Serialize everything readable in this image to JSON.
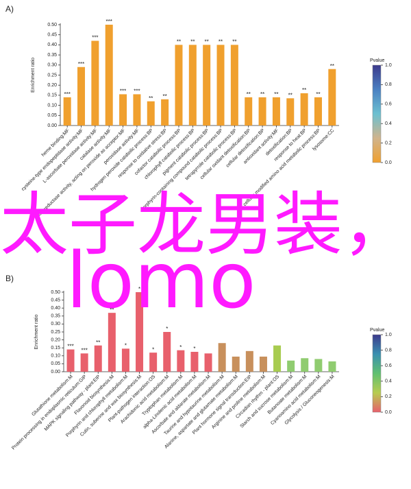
{
  "chart_data": [
    {
      "type": "bar",
      "panel": "A)",
      "ylabel": "Enrichment ratio",
      "categories": [
        "heme binding:MF",
        "cysteine-type endopeptidase activity:MF",
        "L-ascorbate peroxidase activity:MF",
        "catalase activity:MF",
        "oxidoreductase activity, acting on peroxide as acceptor:MF",
        "peroxidase activity:MF",
        "hydrogen peroxide catabolic process:BP",
        "response to oxidative stress:BP",
        "cofactor catabolic process:BP",
        "chlorophyll catabolic process:BP",
        "pigment catabolic process:BP",
        "porphyrin-containing compound catabolic process:BP",
        "tetrapyrrole catabolic process:BP",
        "cellular oxidant detoxification:BP",
        "cellular detoxification:BP",
        "antioxidant activity:MF",
        "detoxification:BP",
        "response to heat:BP",
        "cellular modified amino acid metabolic process:BP",
        "lysosome:CC"
      ],
      "values": [
        0.14,
        0.29,
        0.42,
        0.5,
        0.155,
        0.155,
        0.12,
        0.13,
        0.4,
        0.4,
        0.4,
        0.4,
        0.4,
        0.14,
        0.14,
        0.14,
        0.135,
        0.16,
        0.14,
        0.28
      ],
      "significance": [
        "***",
        "***",
        "***",
        "***",
        "***",
        "***",
        "**",
        "**",
        "**",
        "**",
        "**",
        "**",
        "**",
        "**",
        "**",
        "**",
        "**",
        "**",
        "**",
        "**"
      ],
      "colors": [
        "#f0a02e",
        "#f0a02e",
        "#f0a02e",
        "#f0a02e",
        "#f0a02e",
        "#f0a02e",
        "#f0a02e",
        "#f0a02e",
        "#f0a02e",
        "#f0a02e",
        "#f0a02e",
        "#f0a02e",
        "#f0a02e",
        "#f0a02e",
        "#f0a02e",
        "#f0a02e",
        "#f0a02e",
        "#f0a02e",
        "#f0a02e",
        "#f0a02e"
      ],
      "ylim": [
        0,
        0.5
      ],
      "yticks": [
        {
          "value": 0,
          "label": "0.00"
        },
        {
          "value": 0.05,
          "label": "0.05"
        },
        {
          "value": 0.1,
          "label": "0.10"
        },
        {
          "value": 0.15,
          "label": "0.15"
        },
        {
          "value": 0.2,
          "label": "0.20"
        },
        {
          "value": 0.25,
          "label": "0.25"
        },
        {
          "value": 0.3,
          "label": "0.30"
        },
        {
          "value": 0.35,
          "label": "0.35"
        },
        {
          "value": 0.4,
          "label": "0.40"
        },
        {
          "value": 0.45,
          "label": "0.45"
        },
        {
          "value": 0.5,
          "label": "0.50"
        }
      ],
      "colorbar": {
        "title": "Pvalue",
        "colors": [
          "#3c3a8c",
          "#4a80c2",
          "#6cc0d0",
          "#d0b48c",
          "#f0a02e"
        ],
        "lim": [
          0,
          1
        ],
        "ticks": [
          {
            "value": 0,
            "label": "0.0"
          },
          {
            "value": 0.2,
            "label": "0.2"
          },
          {
            "value": 0.4,
            "label": "0.4"
          },
          {
            "value": 0.6,
            "label": "0.6"
          },
          {
            "value": 0.8,
            "label": "0.8"
          },
          {
            "value": 1,
            "label": "1.0"
          }
        ]
      }
    },
    {
      "type": "bar",
      "panel": "B)",
      "ylabel": "Enrichment ratio",
      "categories": [
        "Glutathione metabolism:M",
        "Protein processing in endoplasmic reticulum:GIP",
        "MAPK signaling pathway - plant:EIP",
        "Flavonoid biosynthesis:M",
        "Porphyrin and chlorophyll metabolism:M",
        "Cutin, suberine and wax biosynthesis:M",
        "Plant-pathogen interaction:OS",
        "Arachidonic acid metabolism:M",
        "Tryptophan metabolism:M",
        "alpha-Linolenic acid metabolism:M",
        "Ascorbate and aldarate metabolism:M",
        "Taurine and hypotaurine metabolism:M",
        "Alanine, aspartate and glutamate metabolism:M",
        "Plant hormone signal transduction:EIP",
        "Arginine and proline metabolism:M",
        "Circadian rhythm - plant:OS",
        "Starch and sucrose metabolism:M",
        "Butanoate metabolism:M",
        "Cyanoamino acid metabolism:M",
        "Glycolysis / Gluconeogenesis:M"
      ],
      "values": [
        0.14,
        0.115,
        0.165,
        0.37,
        0.145,
        0.5,
        0.12,
        0.25,
        0.135,
        0.125,
        0.115,
        0.18,
        0.095,
        0.13,
        0.095,
        0.165,
        0.07,
        0.085,
        0.08,
        0.065
      ],
      "significance": [
        "***",
        "***",
        "**",
        "**",
        "*",
        "*",
        "*",
        "*",
        "*",
        "*",
        null,
        null,
        null,
        null,
        null,
        null,
        null,
        null,
        null,
        null
      ],
      "colors": [
        "#e8606c",
        "#e8606c",
        "#e8606c",
        "#e8606c",
        "#e8606c",
        "#e8606c",
        "#e8606c",
        "#e8606c",
        "#e8606c",
        "#e8606c",
        "#e8606c",
        "#c8905c",
        "#c8905c",
        "#c8905c",
        "#c8905c",
        "#a8cc50",
        "#90cc70",
        "#90cc70",
        "#90cc70",
        "#90cc70"
      ],
      "ylim": [
        0,
        0.5
      ],
      "yticks": [
        {
          "value": 0,
          "label": "0.00"
        },
        {
          "value": 0.05,
          "label": "0.05"
        },
        {
          "value": 0.1,
          "label": "0.10"
        },
        {
          "value": 0.15,
          "label": "0.15"
        },
        {
          "value": 0.2,
          "label": "0.20"
        },
        {
          "value": 0.25,
          "label": "0.25"
        },
        {
          "value": 0.3,
          "label": "0.30"
        },
        {
          "value": 0.35,
          "label": "0.35"
        },
        {
          "value": 0.4,
          "label": "0.40"
        },
        {
          "value": 0.45,
          "label": "0.45"
        },
        {
          "value": 0.5,
          "label": "0.50"
        }
      ],
      "colorbar": {
        "title": "Pvalue",
        "colors": [
          "#3c3a8c",
          "#3a90b0",
          "#60c070",
          "#b8cc50",
          "#e8606c"
        ],
        "lim": [
          0,
          1
        ],
        "ticks": [
          {
            "value": 0,
            "label": "0.0"
          },
          {
            "value": 0.2,
            "label": "0.2"
          },
          {
            "value": 0.4,
            "label": "0.4"
          },
          {
            "value": 0.6,
            "label": "0.6"
          },
          {
            "value": 0.8,
            "label": "0.8"
          },
          {
            "value": 1,
            "label": "1.0"
          }
        ]
      }
    }
  ],
  "overlay": {
    "line1": "太子龙男装，",
    "line2": "lomo"
  }
}
